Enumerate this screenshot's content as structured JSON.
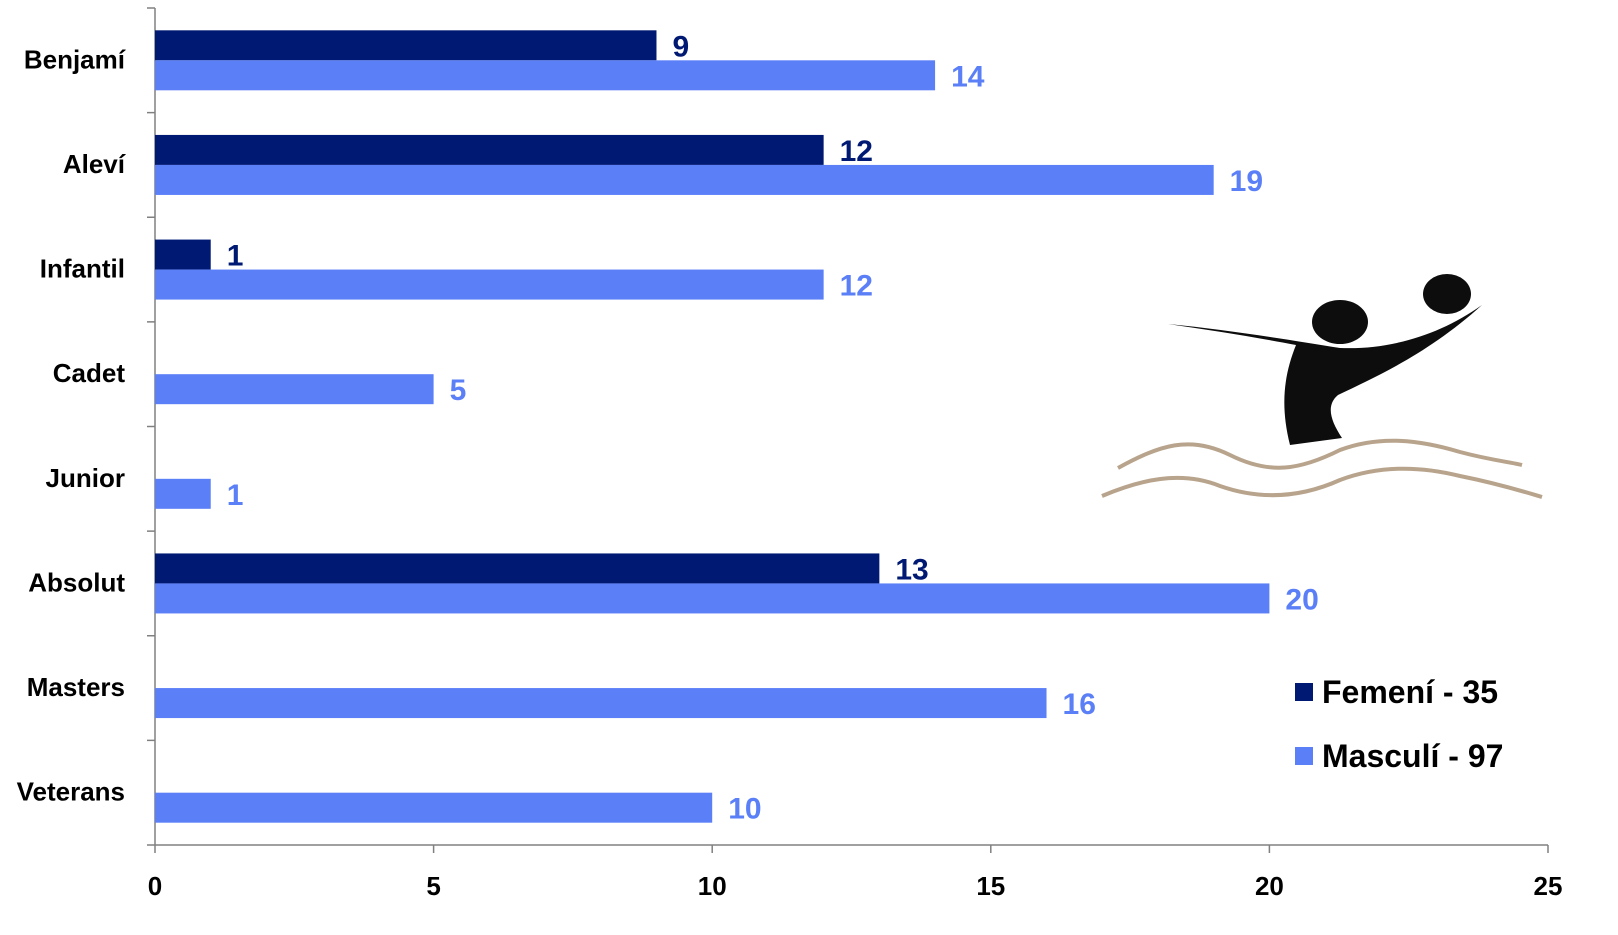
{
  "chart_data": {
    "type": "bar",
    "orientation": "horizontal",
    "categories": [
      "Benjamí",
      "Aleví",
      "Infantil",
      "Cadet",
      "Junior",
      "Absolut",
      "Masters",
      "Veterans"
    ],
    "series": [
      {
        "name": "Femení - 35",
        "color": "#001a73",
        "values": [
          9,
          12,
          1,
          null,
          null,
          13,
          null,
          null
        ]
      },
      {
        "name": "Masculí - 97",
        "color": "#5b7ff7",
        "values": [
          14,
          19,
          12,
          5,
          1,
          20,
          16,
          10
        ]
      }
    ],
    "xlim": [
      0,
      25
    ],
    "xticks": [
      0,
      5,
      10,
      15,
      20,
      25
    ],
    "grid": false,
    "legend_position": "bottom-right",
    "data_labels": true,
    "decoration": "water-polo-player-icon"
  }
}
